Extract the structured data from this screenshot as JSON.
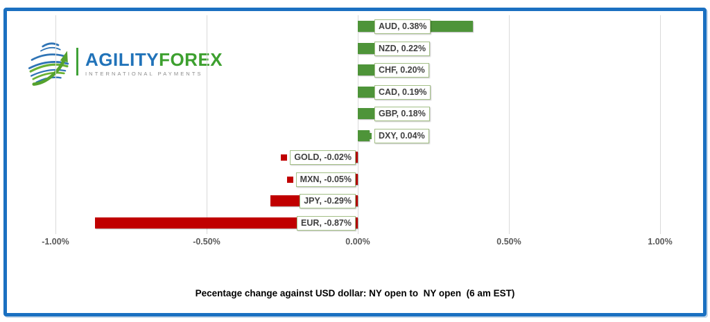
{
  "brand": {
    "name_part1": "AGILITY",
    "name_part2": "FOREX",
    "tagline": "INTERNATIONAL PAYMENTS",
    "colors": {
      "blue": "#2173b9",
      "green": "#3da02f"
    }
  },
  "chart_data": {
    "type": "bar",
    "orientation": "horizontal",
    "title": "Pecentage change against USD dollar: NY open to  NY open  (6 am EST)",
    "categories": [
      "AUD",
      "NZD",
      "CHF",
      "CAD",
      "GBP",
      "DXY",
      "GOLD",
      "MXN",
      "JPY",
      "EUR"
    ],
    "values": [
      0.38,
      0.22,
      0.2,
      0.19,
      0.18,
      0.04,
      -0.02,
      -0.05,
      -0.29,
      -0.87
    ],
    "labels": [
      "AUD, 0.38%",
      "NZD, 0.22%",
      "CHF, 0.20%",
      "CAD, 0.19%",
      "GBP, 0.18%",
      "DXY, 0.04%",
      "GOLD, -0.02%",
      "MXN, -0.05%",
      "JPY, -0.29%",
      "EUR, -0.87%"
    ],
    "xlim": [
      -1.0,
      1.0
    ],
    "x_ticks": [
      "-1.00%",
      "-0.50%",
      "0.00%",
      "0.50%",
      "1.00%"
    ],
    "x_tick_values": [
      -1.0,
      -0.5,
      0,
      0.5,
      1.0
    ],
    "positive_color": "#4e9439",
    "negative_color": "#c00000",
    "gridline_color": "#d9d9d9",
    "label_border_color": "#a3bf86",
    "gridlines": true,
    "legend_position": "none"
  }
}
